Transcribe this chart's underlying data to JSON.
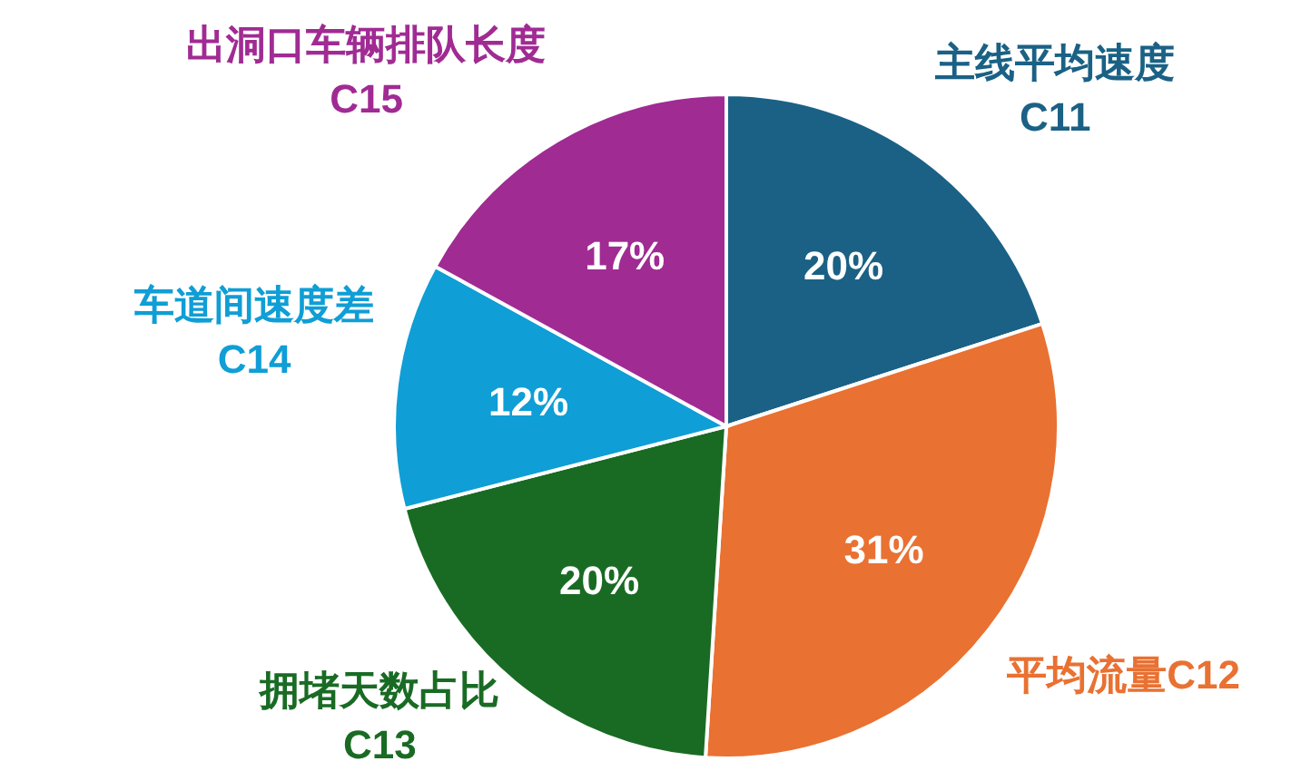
{
  "chart_data": {
    "type": "pie",
    "categories": [
      "主线平均速度\nC11",
      "平均流量C12",
      "拥堵天数占比\nC13",
      "车道间速度差\nC14",
      "出洞口车辆排队长度\nC15"
    ],
    "values": [
      20,
      31,
      20,
      12,
      17
    ],
    "colors": [
      "#1a6185",
      "#e97132",
      "#196b24",
      "#0f9ed5",
      "#a02b93"
    ],
    "value_labels": [
      "20%",
      "31%",
      "20%",
      "12%",
      "17%"
    ]
  }
}
